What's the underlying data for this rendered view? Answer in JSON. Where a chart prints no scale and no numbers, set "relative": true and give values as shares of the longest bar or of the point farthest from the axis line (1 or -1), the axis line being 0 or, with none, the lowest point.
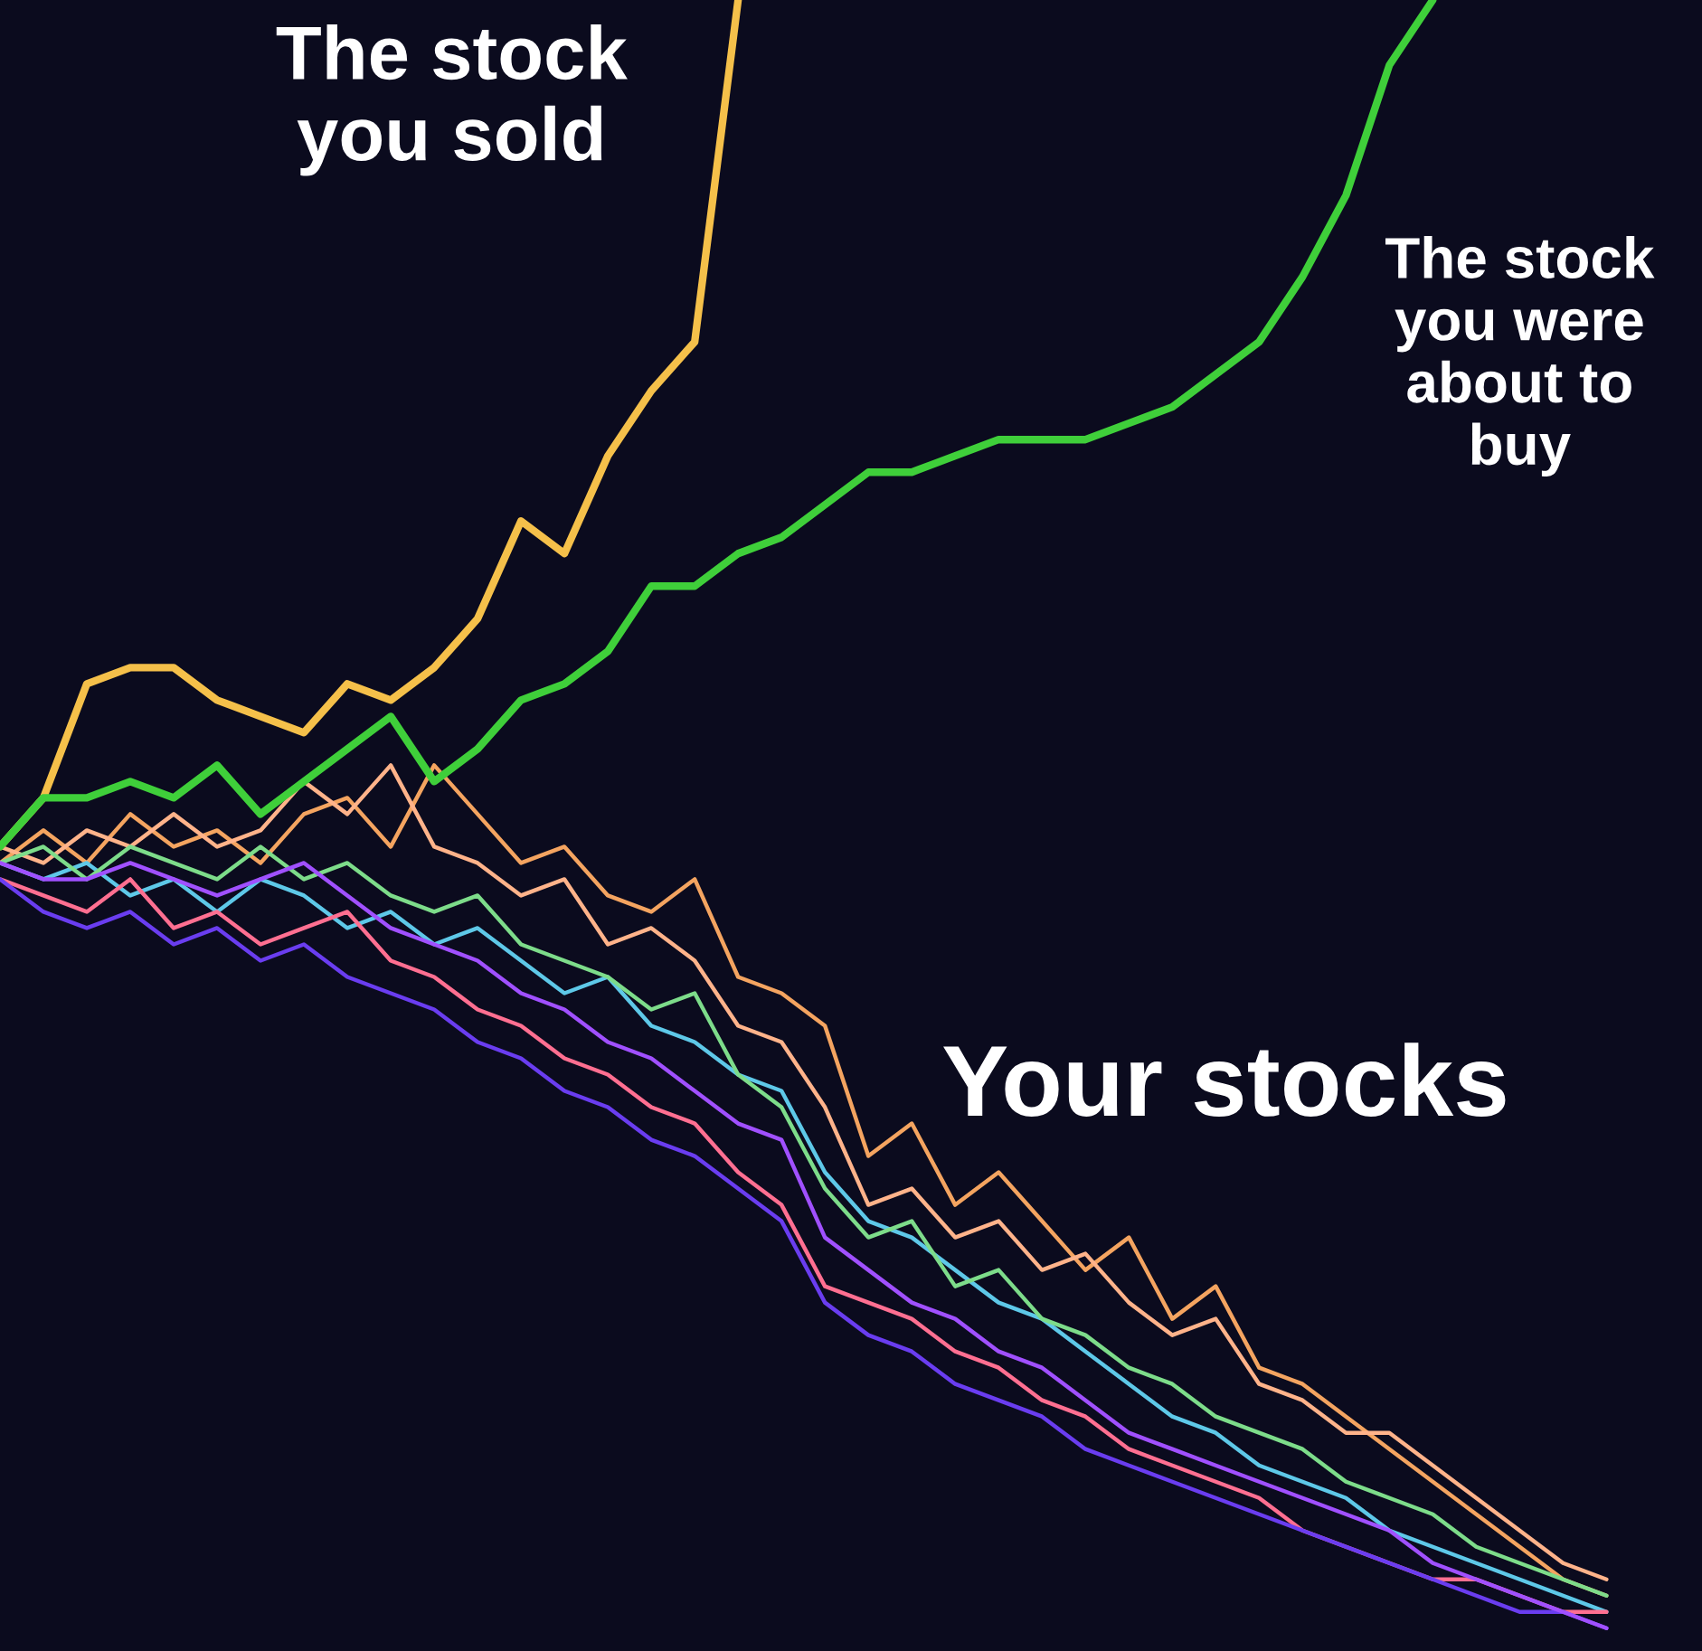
{
  "chart_data": {
    "type": "line",
    "relative": true,
    "legend": false,
    "categories": [
      null,
      null,
      null,
      null,
      null,
      null,
      null,
      null,
      null,
      null,
      null,
      null,
      null,
      null,
      null,
      null,
      null,
      null,
      null,
      null,
      null,
      null,
      null,
      null,
      null,
      null,
      null,
      null,
      null,
      null,
      null,
      null,
      null,
      null,
      null,
      null,
      null,
      null,
      null,
      null
    ],
    "series": [
      {
        "name": "The stock you sold",
        "color": "#f5c04a",
        "values": [
          0.48,
          0.51,
          0.58,
          0.59,
          0.59,
          0.57,
          0.56,
          0.55,
          0.58,
          0.57,
          0.59,
          0.62,
          0.68,
          0.66,
          0.72,
          0.76,
          0.79,
          1.0,
          null,
          null,
          null,
          null,
          null,
          null,
          null,
          null,
          null,
          null,
          null,
          null,
          null,
          null,
          null,
          null,
          null,
          null,
          null,
          null,
          null,
          null
        ]
      },
      {
        "name": "The stock you were about to buy",
        "color": "#3fcf3a",
        "values": [
          0.48,
          0.51,
          0.51,
          0.52,
          0.51,
          0.53,
          0.5,
          0.52,
          0.54,
          0.56,
          0.52,
          0.54,
          0.57,
          0.58,
          0.6,
          0.64,
          0.64,
          0.66,
          0.67,
          0.69,
          0.71,
          0.71,
          0.72,
          0.73,
          0.73,
          0.73,
          0.74,
          0.75,
          0.77,
          0.79,
          0.83,
          0.88,
          0.96,
          1.0,
          null,
          null,
          null,
          null,
          null,
          null
        ]
      },
      {
        "color": "#f4a460",
        "values": [
          0.47,
          0.49,
          0.47,
          0.5,
          0.48,
          0.49,
          0.47,
          0.5,
          0.51,
          0.48,
          0.53,
          0.5,
          0.47,
          0.48,
          0.45,
          0.44,
          0.46,
          0.4,
          0.39,
          0.37,
          0.29,
          0.31,
          0.26,
          0.28,
          0.25,
          0.22,
          0.24,
          0.19,
          0.21,
          0.16,
          0.15,
          0.13,
          0.11,
          0.09,
          0.07,
          0.05,
          0.03,
          0.02,
          null,
          null
        ]
      },
      {
        "color": "#5ec8e8",
        "values": [
          0.47,
          0.46,
          0.47,
          0.45,
          0.46,
          0.44,
          0.46,
          0.45,
          0.43,
          0.44,
          0.42,
          0.43,
          0.41,
          0.39,
          0.4,
          0.37,
          0.36,
          0.34,
          0.33,
          0.28,
          0.25,
          0.24,
          0.22,
          0.2,
          0.19,
          0.17,
          0.15,
          0.13,
          0.12,
          0.1,
          0.09,
          0.08,
          0.06,
          0.05,
          0.04,
          0.03,
          0.02,
          0.01,
          null,
          null
        ]
      },
      {
        "color": "#ff6f91",
        "values": [
          0.46,
          0.45,
          0.44,
          0.46,
          0.43,
          0.44,
          0.42,
          0.43,
          0.44,
          0.41,
          0.4,
          0.38,
          0.37,
          0.35,
          0.34,
          0.32,
          0.31,
          0.28,
          0.26,
          0.21,
          0.2,
          0.19,
          0.17,
          0.16,
          0.14,
          0.13,
          0.11,
          0.1,
          0.09,
          0.08,
          0.06,
          0.05,
          0.04,
          0.03,
          0.03,
          0.02,
          0.01,
          0.01,
          null,
          null
        ]
      },
      {
        "color": "#ffb38a",
        "values": [
          0.48,
          0.47,
          0.49,
          0.48,
          0.5,
          0.48,
          0.49,
          0.52,
          0.5,
          0.53,
          0.48,
          0.47,
          0.45,
          0.46,
          0.42,
          0.43,
          0.41,
          0.37,
          0.36,
          0.32,
          0.26,
          0.27,
          0.24,
          0.25,
          0.22,
          0.23,
          0.2,
          0.18,
          0.19,
          0.15,
          0.14,
          0.12,
          0.12,
          0.1,
          0.08,
          0.06,
          0.04,
          0.03,
          null,
          null
        ]
      },
      {
        "color": "#7ddc8a",
        "values": [
          0.47,
          0.48,
          0.46,
          0.48,
          0.47,
          0.46,
          0.48,
          0.46,
          0.47,
          0.45,
          0.44,
          0.45,
          0.42,
          0.41,
          0.4,
          0.38,
          0.39,
          0.34,
          0.32,
          0.27,
          0.24,
          0.25,
          0.21,
          0.22,
          0.19,
          0.18,
          0.16,
          0.15,
          0.13,
          0.12,
          0.11,
          0.09,
          0.08,
          0.07,
          0.05,
          0.04,
          0.03,
          0.02,
          null,
          null
        ]
      },
      {
        "color": "#6a3df0",
        "values": [
          0.46,
          0.44,
          0.43,
          0.44,
          0.42,
          0.43,
          0.41,
          0.42,
          0.4,
          0.39,
          0.38,
          0.36,
          0.35,
          0.33,
          0.32,
          0.3,
          0.29,
          0.27,
          0.25,
          0.2,
          0.18,
          0.17,
          0.15,
          0.14,
          0.13,
          0.11,
          0.1,
          0.09,
          0.08,
          0.07,
          0.06,
          0.05,
          0.04,
          0.03,
          0.02,
          0.01,
          0.01,
          0.0,
          null,
          null
        ]
      },
      {
        "color": "#a050ff",
        "values": [
          0.47,
          0.46,
          0.46,
          0.47,
          0.46,
          0.45,
          0.46,
          0.47,
          0.45,
          0.43,
          0.42,
          0.41,
          0.39,
          0.38,
          0.36,
          0.35,
          0.33,
          0.31,
          0.3,
          0.24,
          0.22,
          0.2,
          0.19,
          0.17,
          0.16,
          0.14,
          0.12,
          0.11,
          0.1,
          0.09,
          0.08,
          0.07,
          0.06,
          0.04,
          0.03,
          0.02,
          0.01,
          0.0,
          null,
          null
        ]
      }
    ],
    "annotations": [
      "Your stocks"
    ]
  }
}
